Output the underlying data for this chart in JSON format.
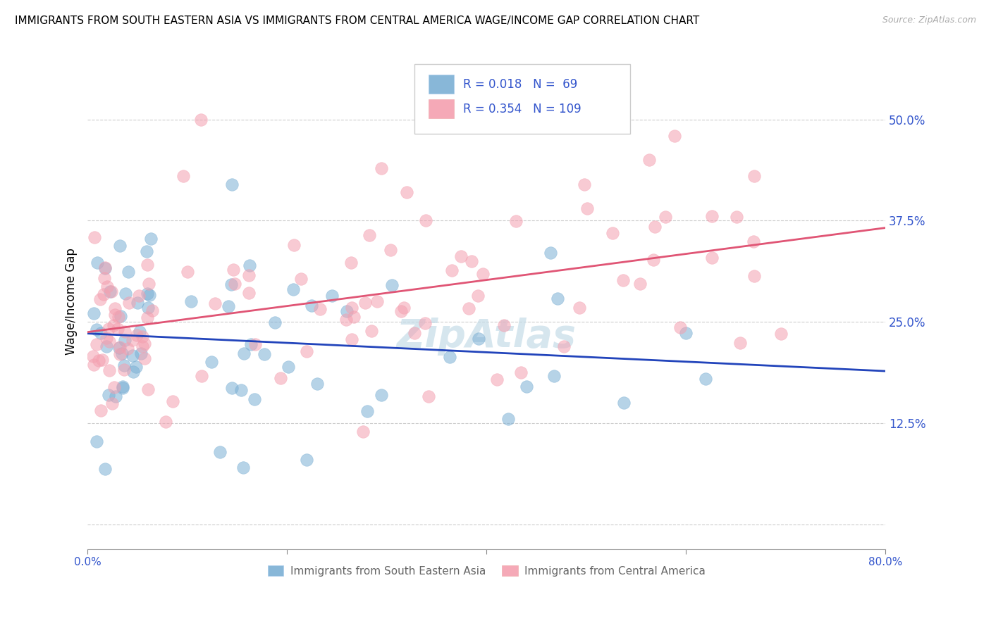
{
  "title": "IMMIGRANTS FROM SOUTH EASTERN ASIA VS IMMIGRANTS FROM CENTRAL AMERICA WAGE/INCOME GAP CORRELATION CHART",
  "source": "Source: ZipAtlas.com",
  "ylabel": "Wage/Income Gap",
  "yticks": [
    0.0,
    0.125,
    0.25,
    0.375,
    0.5
  ],
  "ytick_labels": [
    "",
    "12.5%",
    "25.0%",
    "37.5%",
    "50.0%"
  ],
  "xlim": [
    0.0,
    0.8
  ],
  "ylim": [
    -0.03,
    0.58
  ],
  "series1_label": "Immigrants from South Eastern Asia",
  "series1_color": "#7bafd4",
  "series1_line_color": "#2244bb",
  "series1_R": "0.018",
  "series1_N": "69",
  "series2_label": "Immigrants from Central America",
  "series2_color": "#f4a0b0",
  "series2_line_color": "#e05575",
  "series2_R": "0.354",
  "series2_N": "109",
  "legend_text_color": "#3355cc",
  "watermark": "ZipAtlas",
  "watermark_color": "#c5dce8",
  "title_fontsize": 11,
  "source_fontsize": 9,
  "tick_fontsize": 12,
  "scatter_size": 160,
  "scatter_alpha": 0.55,
  "line_width": 2.0
}
